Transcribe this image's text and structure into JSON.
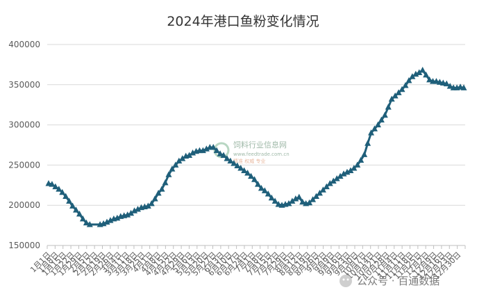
{
  "chart_data": {
    "type": "line",
    "title": "2024年港口鱼粉变化情况",
    "xlabel": "",
    "ylabel": "",
    "ylim": [
      150000,
      400000
    ],
    "yticks": [
      150000,
      200000,
      250000,
      300000,
      350000,
      400000
    ],
    "grid": true,
    "legend": "none",
    "line_color": "#1f5f7a",
    "marker": "triangle",
    "x_tick_labels": [
      "1月1日",
      "1月8日",
      "1月15日",
      "1月22日",
      "1月29日",
      "2月5日",
      "2月12日",
      "2月19日",
      "2月26日",
      "3月4日",
      "3月11日",
      "3月18日",
      "3月25日",
      "4月1日",
      "4月8日",
      "4月15日",
      "4月22日",
      "4月29日",
      "5月6日",
      "5月13日",
      "5月20日",
      "5月27日",
      "6月3日",
      "6月10日",
      "6月17日",
      "6月24日",
      "7月1日",
      "7月8日",
      "7月15日",
      "7月22日",
      "7月29日",
      "8月5日",
      "8月12日",
      "8月19日",
      "8月26日",
      "9月2日",
      "9月9日",
      "9月16日",
      "9月23日",
      "9月30日",
      "10月7日",
      "10月14日",
      "10月21日",
      "10月28日",
      "11月4日",
      "11月11日",
      "11月18日",
      "11月25日",
      "12月2日",
      "12月9日",
      "12月16日",
      "12月23日",
      "12月30日"
    ],
    "series": [
      {
        "values": [
          [
            0,
            227000
          ],
          [
            1,
            226000
          ],
          [
            2,
            223000
          ],
          [
            3,
            220000
          ],
          [
            4,
            216000
          ],
          [
            5,
            211000
          ],
          [
            6,
            205000
          ],
          [
            7,
            199000
          ],
          [
            8,
            194000
          ],
          [
            9,
            189000
          ],
          [
            10,
            183000
          ],
          [
            11,
            178000
          ],
          [
            12,
            176000
          ],
          [
            15,
            176000
          ],
          [
            16,
            177000
          ],
          [
            17,
            179000
          ],
          [
            18,
            181000
          ],
          [
            19,
            183000
          ],
          [
            20,
            184000
          ],
          [
            21,
            186000
          ],
          [
            22,
            187000
          ],
          [
            23,
            188000
          ],
          [
            24,
            190000
          ],
          [
            25,
            193000
          ],
          [
            26,
            195000
          ],
          [
            27,
            197000
          ],
          [
            28,
            198000
          ],
          [
            29,
            199000
          ],
          [
            30,
            202000
          ],
          [
            31,
            208000
          ],
          [
            32,
            215000
          ],
          [
            33,
            220000
          ],
          [
            34,
            228000
          ],
          [
            35,
            238000
          ],
          [
            36,
            245000
          ],
          [
            37,
            250000
          ],
          [
            38,
            255000
          ],
          [
            39,
            258000
          ],
          [
            40,
            261000
          ],
          [
            41,
            262000
          ],
          [
            42,
            265000
          ],
          [
            43,
            267000
          ],
          [
            44,
            268000
          ],
          [
            45,
            268000
          ],
          [
            46,
            270000
          ],
          [
            47,
            272000
          ],
          [
            48,
            272000
          ],
          [
            49,
            268000
          ],
          [
            50,
            264000
          ],
          [
            51,
            262000
          ],
          [
            52,
            258000
          ],
          [
            53,
            255000
          ],
          [
            54,
            252000
          ],
          [
            55,
            249000
          ],
          [
            56,
            246000
          ],
          [
            57,
            243000
          ],
          [
            58,
            240000
          ],
          [
            59,
            236000
          ],
          [
            60,
            232000
          ],
          [
            61,
            226000
          ],
          [
            62,
            221000
          ],
          [
            63,
            218000
          ],
          [
            64,
            214000
          ],
          [
            65,
            209000
          ],
          [
            66,
            205000
          ],
          [
            67,
            201000
          ],
          [
            68,
            200000
          ],
          [
            69,
            201000
          ],
          [
            70,
            202000
          ],
          [
            71,
            205000
          ],
          [
            72,
            208000
          ],
          [
            73,
            210000
          ],
          [
            74,
            204000
          ],
          [
            75,
            202000
          ],
          [
            76,
            203000
          ],
          [
            77,
            207000
          ],
          [
            78,
            211000
          ],
          [
            79,
            215000
          ],
          [
            80,
            219000
          ],
          [
            81,
            223000
          ],
          [
            82,
            227000
          ],
          [
            83,
            230000
          ],
          [
            84,
            233000
          ],
          [
            85,
            236000
          ],
          [
            86,
            239000
          ],
          [
            87,
            241000
          ],
          [
            88,
            243000
          ],
          [
            89,
            246000
          ],
          [
            90,
            250000
          ],
          [
            91,
            256000
          ],
          [
            92,
            263000
          ],
          [
            93,
            277000
          ],
          [
            94,
            290000
          ],
          [
            95,
            295000
          ],
          [
            96,
            300000
          ],
          [
            97,
            306000
          ],
          [
            98,
            312000
          ],
          [
            99,
            322000
          ],
          [
            100,
            332000
          ],
          [
            101,
            336000
          ],
          [
            102,
            340000
          ],
          [
            103,
            344000
          ],
          [
            104,
            349000
          ],
          [
            105,
            355000
          ],
          [
            106,
            360000
          ],
          [
            107,
            363000
          ],
          [
            108,
            365000
          ],
          [
            109,
            368000
          ],
          [
            110,
            362000
          ],
          [
            111,
            356000
          ],
          [
            112,
            354000
          ],
          [
            113,
            354000
          ],
          [
            114,
            353000
          ],
          [
            115,
            352000
          ],
          [
            116,
            351000
          ],
          [
            117,
            348000
          ],
          [
            118,
            346000
          ],
          [
            119,
            346000
          ],
          [
            120,
            347000
          ],
          [
            121,
            346000
          ]
        ]
      }
    ]
  },
  "watermark": {
    "line1": "饲料行业信息网",
    "line2": "www.feedtrade.com.cn",
    "line3": "精准 权威 专业"
  },
  "source_note": "公众号 · 百通数据"
}
